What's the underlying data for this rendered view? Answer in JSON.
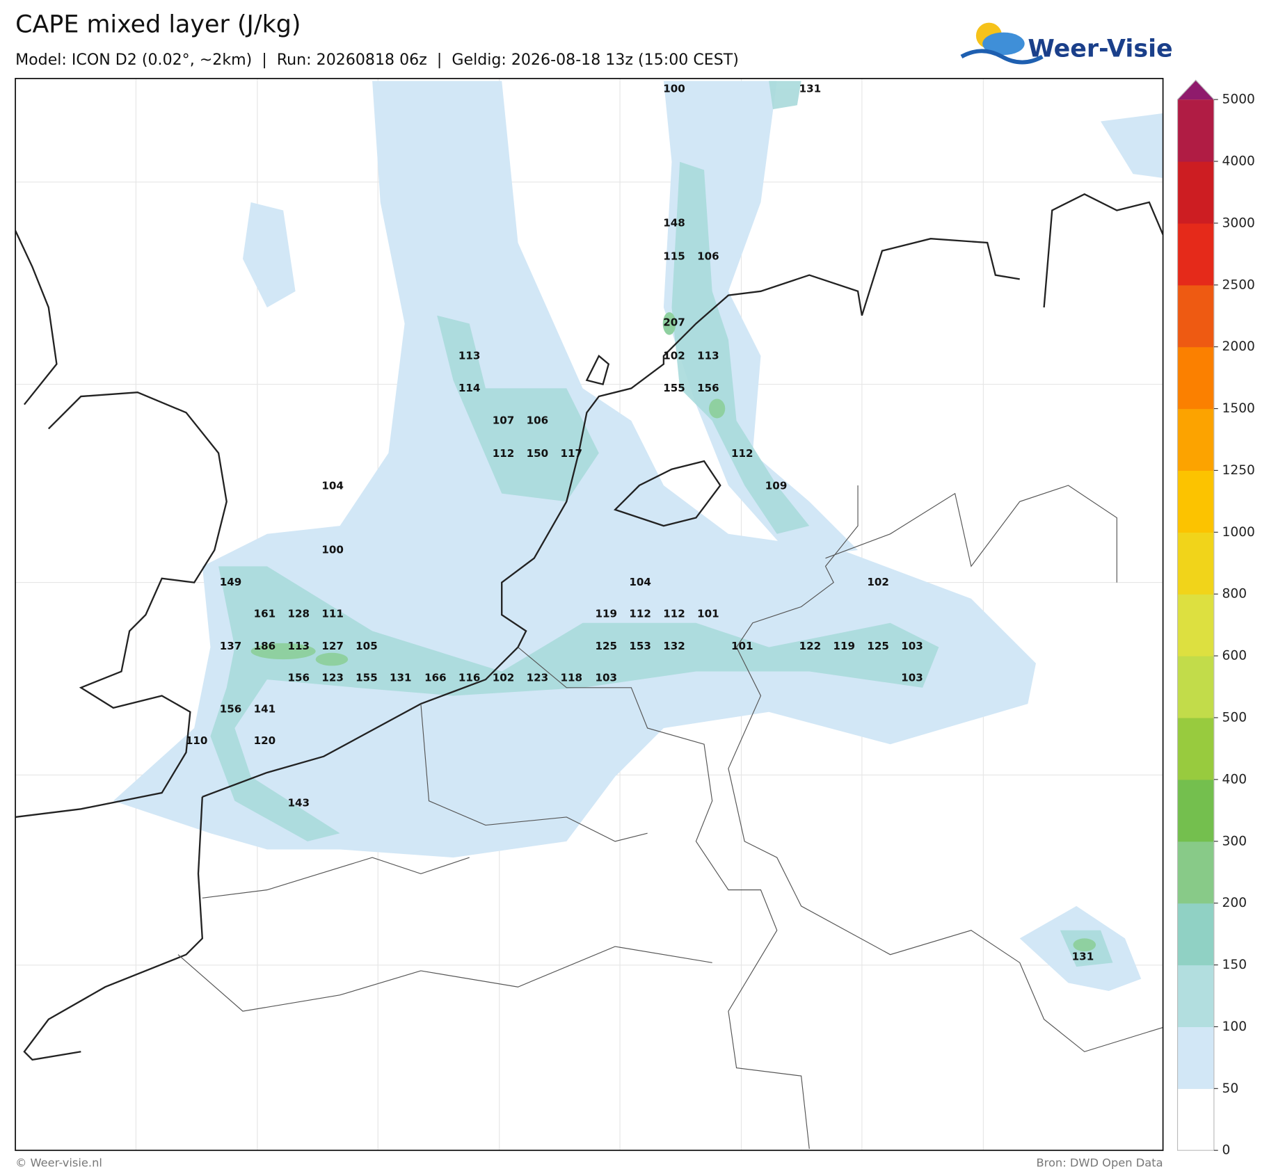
{
  "header": {
    "title": "CAPE mixed layer (J/kg)",
    "subtitle": "Model: ICON D2 (0.02°, ~2km)  |  Run: 20260818 06z  |  Geldig: 2026-08-18 13z (15:00 CEST)"
  },
  "logo": "Weer-Visie",
  "labels": [
    100,
    131,
    148,
    115,
    106,
    207,
    102,
    113,
    113,
    114,
    155,
    156,
    107,
    106,
    112,
    150,
    117,
    112,
    104,
    109,
    100,
    149,
    104,
    102,
    161,
    128,
    111,
    119,
    112,
    112,
    101,
    137,
    186,
    113,
    127,
    105,
    125,
    153,
    132,
    101,
    122,
    119,
    125,
    103,
    156,
    123,
    155,
    131,
    166,
    116,
    102,
    123,
    118,
    103,
    103,
    156,
    141,
    110,
    120,
    143,
    131
  ],
  "colorbar": {
    "ticks": [
      0,
      50,
      100,
      150,
      200,
      300,
      400,
      500,
      600,
      800,
      1000,
      1250,
      1500,
      2000,
      2500,
      3000,
      4000,
      5000
    ],
    "colors": [
      "#ffffff",
      "#d2e7f6",
      "#b2dedf",
      "#90d1c4",
      "#88ca88",
      "#74bf4e",
      "#98cb3e",
      "#c2dc4a",
      "#dde040",
      "#f1d41a",
      "#fcc300",
      "#fca300",
      "#fb8000",
      "#ee5a12",
      "#e52a1a",
      "#cd1d22",
      "#b01c44"
    ],
    "extend_color": "#8f1b6c"
  },
  "footer": {
    "left": "© Weer-visie.nl",
    "right": "Bron: DWD Open Data"
  }
}
